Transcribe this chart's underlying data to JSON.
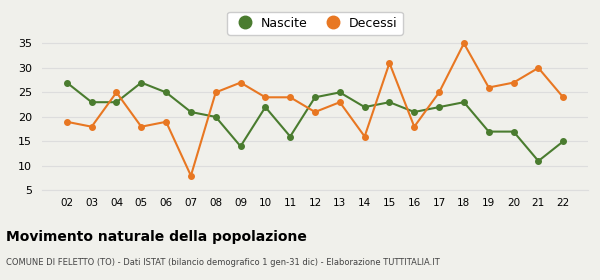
{
  "years": [
    "02",
    "03",
    "04",
    "05",
    "06",
    "07",
    "08",
    "09",
    "10",
    "11",
    "12",
    "13",
    "14",
    "15",
    "16",
    "17",
    "18",
    "19",
    "20",
    "21",
    "22"
  ],
  "nascite": [
    27,
    23,
    23,
    27,
    25,
    21,
    20,
    14,
    22,
    16,
    24,
    25,
    22,
    23,
    21,
    22,
    23,
    17,
    17,
    11,
    15
  ],
  "decessi": [
    19,
    18,
    25,
    18,
    19,
    8,
    25,
    27,
    24,
    24,
    21,
    23,
    16,
    31,
    18,
    25,
    35,
    26,
    27,
    30,
    24
  ],
  "nascite_color": "#4a7c2f",
  "decessi_color": "#e87722",
  "ylim": [
    5,
    37
  ],
  "yticks": [
    5,
    10,
    15,
    20,
    25,
    30,
    35
  ],
  "title": "Movimento naturale della popolazione",
  "subtitle": "COMUNE DI FELETTO (TO) - Dati ISTAT (bilancio demografico 1 gen-31 dic) - Elaborazione TUTTITALIA.IT",
  "legend_nascite": "Nascite",
  "legend_decessi": "Decessi",
  "bg_color": "#f0f0eb",
  "grid_color": "#dddddd"
}
